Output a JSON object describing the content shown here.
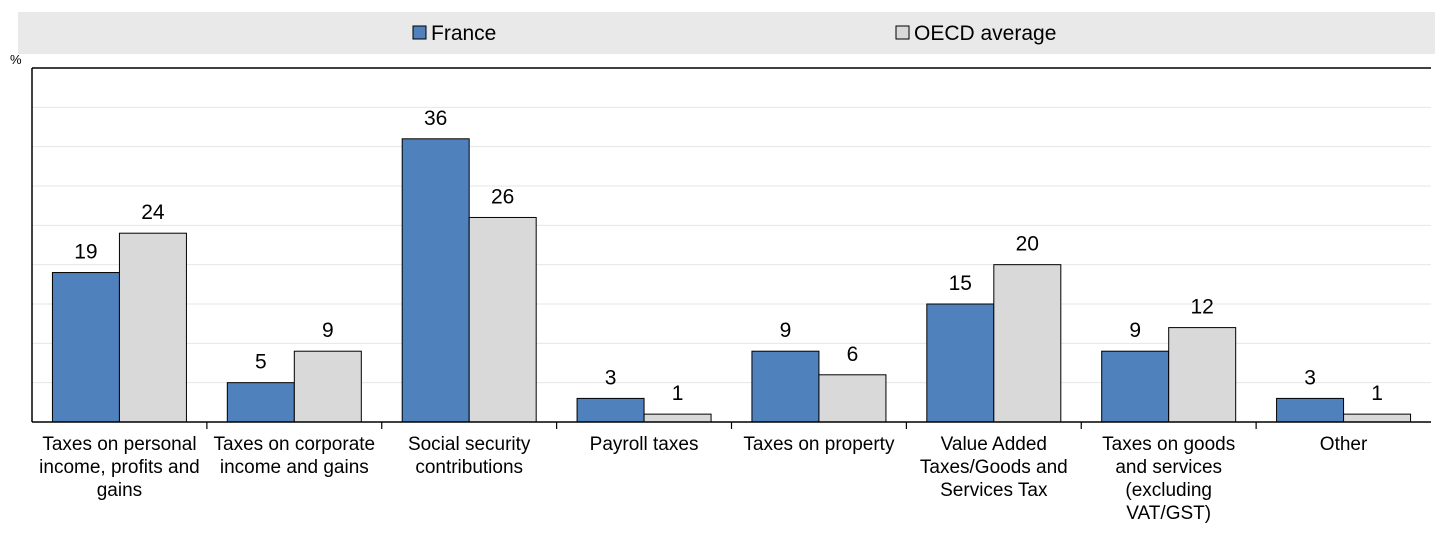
{
  "chart_data": {
    "type": "bar",
    "title": "",
    "xlabel": "",
    "ylabel": "%",
    "ylim": [
      0,
      45
    ],
    "grid": true,
    "legend_position": "top-center",
    "colors": {
      "France": "#4f81bd",
      "OECD average": "#d9d9d9",
      "legend_band": "#e9e9e9"
    },
    "categories": [
      [
        "Taxes on personal",
        "income, profits and",
        "gains"
      ],
      [
        "Taxes on corporate",
        "income and gains"
      ],
      [
        "Social security",
        "contributions"
      ],
      [
        "Payroll taxes"
      ],
      [
        "Taxes on property"
      ],
      [
        "Value Added",
        "Taxes/Goods and",
        "Services Tax"
      ],
      [
        "Taxes on goods",
        "and services",
        "(excluding",
        "VAT/GST)"
      ],
      [
        "Other"
      ]
    ],
    "series": [
      {
        "name": "France",
        "values": [
          19,
          5,
          36,
          3,
          9,
          15,
          9,
          3
        ]
      },
      {
        "name": "OECD average",
        "values": [
          24,
          9,
          26,
          1,
          6,
          20,
          12,
          1
        ]
      }
    ]
  }
}
